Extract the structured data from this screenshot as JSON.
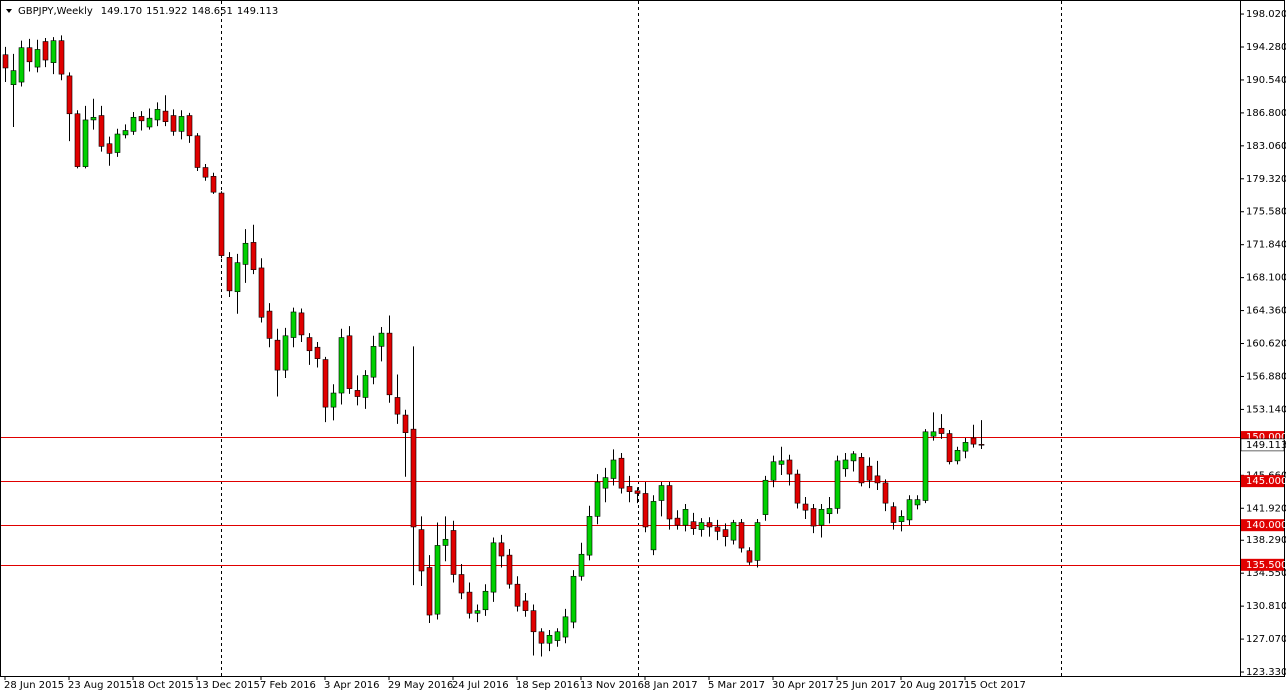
{
  "chart_data": {
    "type": "candlestick",
    "title": "GBPJPY,Weekly",
    "ohlc_labels": [
      "149.170",
      "151.922",
      "148.651",
      "149.113"
    ],
    "categories": [
      "28 Jun 2015",
      null,
      null,
      null,
      null,
      null,
      null,
      null,
      "23 Aug 2015",
      null,
      null,
      null,
      null,
      null,
      null,
      null,
      "18 Oct 2015",
      null,
      null,
      null,
      null,
      null,
      null,
      null,
      "13 Dec 2015",
      null,
      null,
      null,
      null,
      null,
      null,
      null,
      "7 Feb 2016",
      null,
      null,
      null,
      null,
      null,
      null,
      null,
      "3 Apr 2016",
      null,
      null,
      null,
      null,
      null,
      null,
      null,
      "29 May 2016",
      null,
      null,
      null,
      null,
      null,
      null,
      null,
      "24 Jul 2016",
      null,
      null,
      null,
      null,
      null,
      null,
      null,
      "18 Sep 2016",
      null,
      null,
      null,
      null,
      null,
      null,
      null,
      "13 Nov 2016",
      null,
      null,
      null,
      null,
      null,
      null,
      null,
      "8 Jan 2017",
      null,
      null,
      null,
      null,
      null,
      null,
      null,
      "5 Mar 2017",
      null,
      null,
      null,
      null,
      null,
      null,
      null,
      "30 Apr 2017",
      null,
      null,
      null,
      null,
      null,
      null,
      null,
      "25 Jun 2017",
      null,
      null,
      null,
      null,
      null,
      null,
      null,
      "20 Aug 2017",
      null,
      null,
      null,
      null,
      null,
      null,
      null,
      "15 Oct 2017",
      null,
      null
    ],
    "open": [
      193.4,
      190.0,
      190.3,
      194.2,
      192.0,
      194.9,
      192.5,
      195.0,
      191.0,
      186.7,
      180.7,
      186.0,
      186.5,
      183.3,
      182.3,
      184.3,
      184.7,
      186.4,
      185.2,
      186.0,
      187.0,
      186.5,
      184.7,
      186.5,
      184.2,
      180.6,
      179.6,
      177.7,
      170.4,
      166.5,
      169.6,
      172.1,
      169.2,
      164.3,
      161.0,
      157.6,
      161.3,
      164.1,
      161.3,
      160.2,
      158.8,
      153.4,
      155.0,
      161.5,
      155.3,
      154.5,
      156.8,
      160.3,
      161.8,
      154.5,
      152.5,
      150.9,
      139.5,
      135.2,
      129.9,
      137.7,
      139.4,
      134.4,
      132.4,
      130.0,
      130.4,
      132.4,
      138.0,
      136.6,
      133.3,
      131.4,
      130.3,
      127.9,
      126.6,
      126.9,
      127.3,
      129.0,
      134.2,
      136.6,
      141.0,
      144.2,
      145.3,
      147.6,
      144.4,
      143.9,
      143.6,
      137.2,
      142.8,
      144.5,
      140.8,
      140.0,
      140.4,
      139.5,
      140.3,
      139.8,
      139.5,
      138.3,
      140.3,
      137.1,
      136.0,
      141.2,
      145.1,
      146.9,
      147.4,
      145.8,
      142.4,
      141.9,
      140.0,
      141.3,
      141.9,
      146.4,
      147.3,
      147.7,
      146.7,
      145.6,
      144.8,
      142.1,
      140.4,
      140.6,
      142.3,
      142.8,
      150.1,
      151.0,
      150.4,
      147.3,
      148.4,
      149.9,
      149.17
    ],
    "high": [
      194.3,
      193.5,
      195.0,
      195.2,
      195.1,
      195.3,
      195.4,
      195.6,
      191.4,
      187.1,
      187.6,
      188.4,
      187.6,
      184.1,
      185.0,
      185.5,
      186.9,
      187.0,
      187.3,
      188.0,
      188.8,
      187.2,
      187.1,
      186.8,
      184.5,
      181.0,
      180.0,
      177.9,
      171.0,
      170.8,
      173.6,
      174.1,
      170.3,
      165.2,
      162.3,
      162.4,
      164.7,
      164.6,
      161.8,
      160.8,
      159.1,
      156.0,
      162.3,
      162.6,
      157.0,
      157.6,
      161.5,
      162.5,
      163.8,
      157.1,
      153.1,
      160.3,
      141.0,
      136.6,
      140.3,
      141.0,
      140.5,
      135.6,
      133.5,
      131.0,
      133.3,
      138.6,
      138.9,
      137.3,
      134.2,
      132.3,
      131.0,
      128.3,
      128.1,
      128.3,
      130.5,
      134.9,
      138.0,
      142.2,
      145.8,
      146.5,
      148.6,
      148.2,
      145.6,
      144.3,
      144.9,
      143.4,
      144.9,
      144.9,
      141.7,
      142.4,
      141.4,
      140.8,
      140.9,
      140.6,
      140.2,
      140.6,
      140.7,
      137.5,
      140.7,
      145.6,
      147.9,
      148.9,
      148.0,
      146.3,
      143.2,
      142.4,
      142.4,
      143.2,
      147.9,
      148.2,
      148.4,
      148.2,
      147.7,
      147.3,
      145.2,
      142.6,
      141.7,
      143.4,
      143.4,
      150.9,
      152.8,
      152.6,
      150.8,
      148.9,
      149.9,
      151.4,
      151.922
    ],
    "low": [
      190.3,
      185.2,
      189.8,
      191.5,
      191.4,
      192.0,
      191.2,
      190.5,
      183.6,
      180.5,
      180.5,
      184.9,
      182.4,
      180.8,
      181.8,
      183.9,
      184.3,
      184.8,
      184.9,
      185.3,
      185.3,
      184.2,
      183.8,
      183.4,
      180.2,
      179.1,
      177.6,
      170.3,
      165.9,
      164.0,
      167.5,
      168.5,
      163.0,
      160.2,
      154.6,
      156.7,
      160.2,
      160.8,
      158.2,
      157.9,
      151.7,
      151.9,
      153.7,
      154.9,
      153.6,
      153.2,
      156.0,
      158.6,
      153.9,
      151.5,
      145.5,
      133.2,
      133.1,
      128.9,
      129.3,
      135.9,
      133.5,
      131.6,
      129.4,
      129.0,
      129.7,
      131.3,
      135.2,
      132.8,
      130.2,
      129.6,
      125.2,
      125.1,
      125.7,
      126.2,
      126.6,
      128.3,
      133.7,
      136.0,
      140.1,
      142.6,
      144.5,
      143.6,
      142.6,
      142.5,
      139.2,
      136.6,
      141.0,
      139.5,
      139.5,
      139.3,
      138.9,
      138.7,
      138.7,
      138.3,
      137.6,
      137.8,
      136.9,
      135.5,
      135.2,
      140.5,
      144.3,
      145.7,
      144.5,
      141.9,
      140.7,
      139.1,
      138.6,
      140.2,
      141.3,
      145.5,
      146.1,
      144.4,
      144.2,
      144.0,
      141.6,
      139.5,
      139.3,
      140.0,
      141.8,
      142.5,
      149.6,
      149.8,
      146.9,
      146.9,
      147.6,
      148.8,
      148.651
    ],
    "close": [
      191.9,
      191.6,
      194.2,
      192.6,
      194.0,
      192.8,
      195.0,
      191.2,
      186.7,
      180.7,
      186.0,
      186.3,
      183.0,
      182.2,
      184.4,
      184.8,
      186.3,
      185.9,
      186.2,
      187.2,
      185.8,
      184.7,
      186.4,
      184.2,
      180.6,
      179.5,
      177.8,
      170.6,
      166.6,
      169.8,
      172.0,
      169.0,
      163.6,
      161.2,
      157.6,
      161.5,
      164.2,
      161.6,
      159.8,
      158.9,
      153.4,
      155.0,
      161.3,
      155.5,
      154.6,
      157.0,
      160.3,
      161.8,
      154.8,
      152.6,
      150.5,
      139.8,
      134.8,
      129.8,
      137.7,
      138.4,
      134.4,
      132.3,
      130.0,
      130.3,
      132.5,
      138.0,
      136.5,
      133.3,
      130.8,
      130.3,
      127.9,
      126.6,
      127.5,
      127.9,
      129.6,
      134.2,
      136.7,
      141.0,
      144.9,
      145.4,
      147.4,
      144.2,
      143.8,
      143.6,
      139.8,
      142.7,
      144.5,
      140.7,
      140.0,
      141.8,
      139.6,
      140.3,
      139.8,
      139.3,
      138.7,
      140.3,
      137.4,
      135.8,
      140.3,
      145.1,
      147.2,
      147.3,
      145.8,
      142.5,
      141.7,
      139.9,
      141.8,
      141.9,
      147.3,
      147.4,
      148.1,
      144.8,
      145.1,
      144.8,
      142.5,
      140.3,
      141.0,
      142.9,
      142.9,
      150.6,
      150.6,
      150.4,
      147.2,
      148.5,
      149.4,
      149.2,
      149.113
    ],
    "up_color": "#00d000",
    "down_color": "#e00000",
    "ylim": [
      122.88,
      199.16
    ],
    "yticks": [
      {
        "value": 198.02,
        "label": "198.020"
      },
      {
        "value": 194.28,
        "label": "194.280"
      },
      {
        "value": 190.54,
        "label": "190.540"
      },
      {
        "value": 186.8,
        "label": "186.800"
      },
      {
        "value": 183.06,
        "label": "183.060"
      },
      {
        "value": 179.32,
        "label": "179.320"
      },
      {
        "value": 175.58,
        "label": "175.580"
      },
      {
        "value": 171.84,
        "label": "171.840"
      },
      {
        "value": 168.1,
        "label": "168.100"
      },
      {
        "value": 164.36,
        "label": "164.360"
      },
      {
        "value": 160.62,
        "label": "160.620"
      },
      {
        "value": 156.88,
        "label": "156.880"
      },
      {
        "value": 153.14,
        "label": "153.140"
      },
      {
        "value": 145.66,
        "label": "145.660"
      },
      {
        "value": 141.92,
        "label": "141.920"
      },
      {
        "value": 138.29,
        "label": "138.290"
      },
      {
        "value": 134.55,
        "label": "134.550"
      },
      {
        "value": 130.81,
        "label": "130.810"
      },
      {
        "value": 127.07,
        "label": "127.070"
      },
      {
        "value": 123.33,
        "label": "123.330"
      }
    ],
    "levels": [
      {
        "value": 150,
        "label": "150.000"
      },
      {
        "value": 145,
        "label": "145.000"
      },
      {
        "value": 140,
        "label": "140.000"
      },
      {
        "value": 135.5,
        "label": "135.500"
      }
    ],
    "level_color": "#e00000"
  }
}
